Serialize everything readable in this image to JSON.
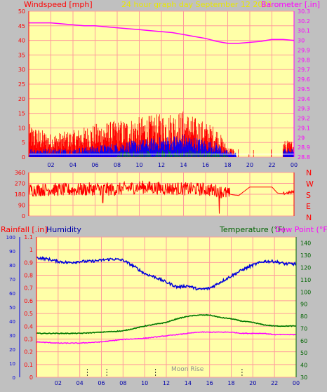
{
  "header": {
    "left_label": "Windspeed [mph]",
    "center_label": "24 hour graph day   September 12 2021",
    "right_label": "Barometer [.in]"
  },
  "colors": {
    "plot_bg": "#ffffa8",
    "frame_bg": "#c0c0c0",
    "grid": "#ff9c9c",
    "wind": "#ff0000",
    "gust": "#ff0000",
    "wind_avg": "#0000ff",
    "wind_low": "#009000",
    "wind_white": "#ffffff",
    "barometer": "#ff00ff",
    "direction": "#ff0000",
    "humidity": "#0000dd",
    "temperature": "#007800",
    "dewpoint": "#ff00ff",
    "rain_label": "#ff0000",
    "humidity_label": "#0000aa",
    "temp_label": "#006400",
    "dew_label": "#ff00ff"
  },
  "x_ticks": [
    "02",
    "04",
    "06",
    "08",
    "10",
    "12",
    "14",
    "16",
    "18",
    "20",
    "22",
    "00"
  ],
  "chart_data": [
    {
      "type": "bar",
      "y_axis_left": {
        "label": "Windspeed [mph]",
        "ticks": [
          "0",
          "5",
          "10",
          "15",
          "20",
          "25",
          "30",
          "35",
          "40",
          "45",
          "50"
        ],
        "range": [
          0,
          50
        ]
      },
      "y_axis_right": {
        "label": "Barometer [.in]",
        "ticks": [
          "28.8",
          "28.9",
          "29",
          "29.1",
          "29.2",
          "29.3",
          "29.4",
          "29.5",
          "29.6",
          "29.7",
          "29.8",
          "29.9",
          "30",
          "30.1",
          "30.2",
          "30.3"
        ],
        "range": [
          28.8,
          30.3
        ]
      },
      "series": [
        {
          "name": "Barometer [.in]",
          "type": "line",
          "points": [
            [
              0,
              30.18
            ],
            [
              1,
              30.18
            ],
            [
              2,
              30.18
            ],
            [
              3,
              30.17
            ],
            [
              4,
              30.16
            ],
            [
              5,
              30.15
            ],
            [
              6,
              30.15
            ],
            [
              7,
              30.14
            ],
            [
              8,
              30.13
            ],
            [
              9,
              30.12
            ],
            [
              10,
              30.11
            ],
            [
              11,
              30.1
            ],
            [
              12,
              30.09
            ],
            [
              13,
              30.08
            ],
            [
              14,
              30.06
            ],
            [
              15,
              30.04
            ],
            [
              16,
              30.02
            ],
            [
              17,
              29.99
            ],
            [
              18,
              29.97
            ],
            [
              19,
              29.97
            ],
            [
              20,
              29.98
            ],
            [
              21,
              29.99
            ],
            [
              22,
              30.01
            ],
            [
              23,
              30.01
            ],
            [
              24,
              30.0
            ]
          ]
        },
        {
          "type": "bar",
          "points": [
            [
              0,
              3
            ],
            [
              2,
              3
            ],
            [
              4,
              3
            ],
            [
              6,
              4
            ],
            [
              8,
              5
            ],
            [
              10,
              6
            ],
            [
              12,
              7
            ],
            [
              14,
              8
            ],
            [
              15,
              7
            ],
            [
              17,
              5
            ],
            [
              18,
              2
            ],
            [
              20,
              1
            ],
            [
              22,
              1
            ],
            [
              23,
              3
            ],
            [
              24,
              3
            ]
          ]
        },
        {
          "type": "bar",
          "points": [
            [
              0,
              10
            ],
            [
              2,
              7
            ],
            [
              4,
              8
            ],
            [
              6,
              10
            ],
            [
              8,
              11
            ],
            [
              10,
              12
            ],
            [
              12,
              13
            ],
            [
              14,
              14
            ],
            [
              15,
              12
            ],
            [
              17,
              9
            ],
            [
              18,
              3
            ],
            [
              20,
              2
            ],
            [
              22,
              3
            ],
            [
              23,
              5
            ],
            [
              24,
              5
            ]
          ]
        }
      ]
    },
    {
      "type": "line",
      "y_axis_left": {
        "ticks": [
          "0",
          "90",
          "180",
          "270",
          "360"
        ],
        "range": [
          0,
          360
        ]
      },
      "y_axis_right": {
        "ticks": [
          "N",
          "W",
          "S",
          "E",
          "N"
        ]
      },
      "series": [
        {
          "type": "line",
          "points": [
            [
              0,
              215
            ],
            [
              2,
              220
            ],
            [
              4,
              215
            ],
            [
              6,
              225
            ],
            [
              8,
              220
            ],
            [
              10,
              240
            ],
            [
              12,
              230
            ],
            [
              14,
              225
            ],
            [
              16,
              220
            ],
            [
              17,
              210
            ],
            [
              18,
              185
            ],
            [
              18.5,
              175
            ],
            [
              19,
              170
            ],
            [
              20,
              240
            ],
            [
              21,
              240
            ],
            [
              22,
              240
            ],
            [
              22.5,
              190
            ],
            [
              23,
              185
            ],
            [
              24,
              200
            ]
          ]
        }
      ]
    },
    {
      "type": "line",
      "y_axis_left_outer": {
        "label": "Rainfall [.in]",
        "ticks": [
          "0",
          "10",
          "20",
          "30",
          "40",
          "50",
          "60",
          "70",
          "80",
          "90",
          "100"
        ],
        "range": [
          0,
          100
        ]
      },
      "y_axis_left_inner": {
        "label": "Humidity",
        "ticks": [
          "0",
          "0.1",
          "0.2",
          "0.3",
          "0.4",
          "0.5",
          "0.6",
          "0.7",
          "0.8",
          "0.9",
          "1",
          "1.1"
        ],
        "range": [
          0,
          1.1
        ]
      },
      "y_axis_right": {
        "label": "Temperature (°F)",
        "label2": "Dew Point (°F)",
        "ticks": [
          "30",
          "40",
          "50",
          "60",
          "70",
          "80",
          "90",
          "100",
          "110",
          "120",
          "130",
          "140"
        ],
        "range": [
          30,
          145
        ]
      },
      "annotations": {
        "moon_rise": "Moon Rise"
      },
      "series": [
        {
          "name": "Humidity",
          "type": "line",
          "points": [
            [
              0,
              128
            ],
            [
              1,
              127
            ],
            [
              2,
              125
            ],
            [
              3,
              124
            ],
            [
              4,
              125
            ],
            [
              5,
              125
            ],
            [
              6,
              126
            ],
            [
              7,
              127
            ],
            [
              8,
              126
            ],
            [
              9,
              121
            ],
            [
              10,
              115
            ],
            [
              11,
              112
            ],
            [
              12,
              108
            ],
            [
              13,
              104
            ],
            [
              14,
              105
            ],
            [
              15,
              102
            ],
            [
              16,
              103
            ],
            [
              17,
              108
            ],
            [
              18,
              113
            ],
            [
              19,
              118
            ],
            [
              20,
              122
            ],
            [
              21,
              125
            ],
            [
              22,
              125
            ],
            [
              23,
              123
            ],
            [
              24,
              123
            ]
          ]
        },
        {
          "name": "Temperature (°F)",
          "type": "line",
          "points": [
            [
              0,
              66
            ],
            [
              2,
              66
            ],
            [
              4,
              66
            ],
            [
              6,
              67
            ],
            [
              8,
              68
            ],
            [
              10,
              72
            ],
            [
              12,
              75
            ],
            [
              13,
              78
            ],
            [
              14,
              80
            ],
            [
              15,
              81
            ],
            [
              16,
              81
            ],
            [
              17,
              79
            ],
            [
              18,
              78
            ],
            [
              19,
              76
            ],
            [
              20,
              75
            ],
            [
              21,
              73
            ],
            [
              22,
              72
            ],
            [
              23,
              72
            ],
            [
              24,
              72
            ]
          ]
        },
        {
          "name": "Dew Point (°F)",
          "type": "line",
          "points": [
            [
              0,
              59
            ],
            [
              2,
              58
            ],
            [
              4,
              58
            ],
            [
              6,
              59
            ],
            [
              8,
              61
            ],
            [
              10,
              62
            ],
            [
              12,
              64
            ],
            [
              13,
              65
            ],
            [
              14,
              66
            ],
            [
              15,
              67
            ],
            [
              16,
              67
            ],
            [
              17,
              67
            ],
            [
              18,
              67
            ],
            [
              19,
              66
            ],
            [
              20,
              66
            ],
            [
              21,
              66
            ],
            [
              22,
              65
            ],
            [
              23,
              65
            ],
            [
              24,
              65
            ]
          ]
        }
      ]
    }
  ]
}
